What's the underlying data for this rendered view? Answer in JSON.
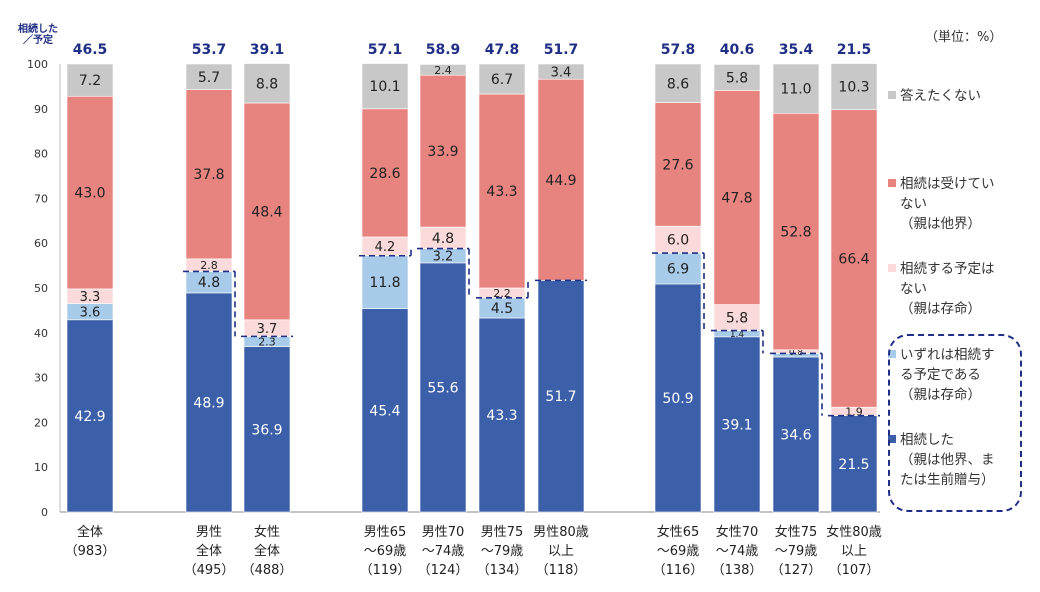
{
  "unit_label": "（単位：%）",
  "y_axis_label": "相続した\n／予定",
  "colors": {
    "inherited": "#3b5fa8",
    "plan_someday": "#a8cbe9",
    "plan_not": "#fadada",
    "not_received": "#e88480",
    "no_answer": "#c8c8c8",
    "total_label": "#1f2f86",
    "dashed": "#1f2f86"
  },
  "legend": [
    {
      "key": "no_answer",
      "lines": [
        "答えたくない"
      ]
    },
    {
      "key": "not_received",
      "lines": [
        "相続は受けてい",
        "ない",
        "（親は他界）"
      ]
    },
    {
      "key": "plan_not",
      "lines": [
        "相続する予定は",
        "ない",
        "（親は存命）"
      ]
    },
    {
      "key": "plan_someday",
      "lines": [
        "いずれは相続す",
        "る予定である",
        "（親は存命）"
      ]
    },
    {
      "key": "inherited",
      "lines": [
        "相続した",
        "（親は他界、ま",
        "たは生前贈与）"
      ]
    }
  ],
  "chart_data": {
    "type": "bar",
    "stacked": true,
    "ylim": [
      0,
      100
    ],
    "yticks": [
      0,
      10,
      20,
      30,
      40,
      50,
      60,
      70,
      80,
      90,
      100
    ],
    "grid": false,
    "legend_position": "right",
    "series_order": [
      "inherited",
      "plan_someday",
      "plan_not",
      "not_received",
      "no_answer"
    ],
    "series": [
      {
        "key": "inherited",
        "name": "相続した（親は他界、または生前贈与）"
      },
      {
        "key": "plan_someday",
        "name": "いずれは相続する予定である（親は存命）"
      },
      {
        "key": "plan_not",
        "name": "相続する予定はない（親は存命）"
      },
      {
        "key": "not_received",
        "name": "相続は受けていない（親は他界）"
      },
      {
        "key": "no_answer",
        "name": "答えたくない"
      }
    ],
    "categories": [
      {
        "label": [
          "全体",
          "（983）"
        ],
        "total": "46.5",
        "values": {
          "inherited": 42.9,
          "plan_someday": 3.6,
          "plan_not": 3.3,
          "not_received": 43.0,
          "no_answer": 7.2
        },
        "labels": {
          "inherited": "42.9",
          "plan_someday": "3.6",
          "plan_not": "3.3",
          "not_received": "43.0",
          "no_answer": "7.2"
        }
      },
      {
        "label": [
          "男性",
          "全体",
          "（495）"
        ],
        "total": "53.7",
        "values": {
          "inherited": 48.9,
          "plan_someday": 4.8,
          "plan_not": 2.8,
          "not_received": 37.8,
          "no_answer": 5.7
        },
        "labels": {
          "inherited": "48.9",
          "plan_someday": "4.8",
          "plan_not": "2.8",
          "not_received": "37.8",
          "no_answer": "5.7"
        }
      },
      {
        "label": [
          "女性",
          "全体",
          "（488）"
        ],
        "total": "39.1",
        "values": {
          "inherited": 36.9,
          "plan_someday": 2.3,
          "plan_not": 3.7,
          "not_received": 48.4,
          "no_answer": 8.8
        },
        "labels": {
          "inherited": "36.9",
          "plan_someday": "2.3",
          "plan_not": "3.7",
          "not_received": "48.4",
          "no_answer": "8.8"
        }
      },
      {
        "label": [
          "男性65",
          "～69歳",
          "（119）"
        ],
        "total": "57.1",
        "values": {
          "inherited": 45.4,
          "plan_someday": 11.8,
          "plan_not": 4.2,
          "not_received": 28.6,
          "no_answer": 10.1
        },
        "labels": {
          "inherited": "45.4",
          "plan_someday": "11.8",
          "plan_not": "4.2",
          "not_received": "28.6",
          "no_answer": "10.1"
        }
      },
      {
        "label": [
          "男性70",
          "～74歳",
          "（124）"
        ],
        "total": "58.9",
        "values": {
          "inherited": 55.6,
          "plan_someday": 3.2,
          "plan_not": 4.8,
          "not_received": 33.9,
          "no_answer": 2.4
        },
        "labels": {
          "inherited": "55.6",
          "plan_someday": "3.2",
          "plan_not": "4.8",
          "not_received": "33.9",
          "no_answer": "2.4"
        }
      },
      {
        "label": [
          "男性75",
          "～79歳",
          "（134）"
        ],
        "total": "47.8",
        "values": {
          "inherited": 43.3,
          "plan_someday": 4.5,
          "plan_not": 2.2,
          "not_received": 43.3,
          "no_answer": 6.7
        },
        "labels": {
          "inherited": "43.3",
          "plan_someday": "4.5",
          "plan_not": "2.2",
          "not_received": "43.3",
          "no_answer": "6.7"
        }
      },
      {
        "label": [
          "男性80歳",
          "以上",
          "（118）"
        ],
        "total": "51.7",
        "values": {
          "inherited": 51.7,
          "plan_someday": 0,
          "plan_not": 0,
          "not_received": 44.9,
          "no_answer": 3.4
        },
        "labels": {
          "inherited": "51.7",
          "plan_someday": "",
          "plan_not": "",
          "not_received": "44.9",
          "no_answer": "3.4"
        }
      },
      {
        "label": [
          "女性65",
          "～69歳",
          "（116）"
        ],
        "total": "57.8",
        "values": {
          "inherited": 50.9,
          "plan_someday": 6.9,
          "plan_not": 6.0,
          "not_received": 27.6,
          "no_answer": 8.6
        },
        "labels": {
          "inherited": "50.9",
          "plan_someday": "6.9",
          "plan_not": "6.0",
          "not_received": "27.6",
          "no_answer": "8.6"
        }
      },
      {
        "label": [
          "女性70",
          "～74歳",
          "（138）"
        ],
        "total": "40.6",
        "values": {
          "inherited": 39.1,
          "plan_someday": 1.4,
          "plan_not": 5.8,
          "not_received": 47.8,
          "no_answer": 5.8
        },
        "labels": {
          "inherited": "39.1",
          "plan_someday": "1.4",
          "plan_not": "5.8",
          "not_received": "47.8",
          "no_answer": "5.8"
        }
      },
      {
        "label": [
          "女性75",
          "～79歳",
          "（127）"
        ],
        "total": "35.4",
        "values": {
          "inherited": 34.6,
          "plan_someday": 0.8,
          "plan_not": 0.8,
          "not_received": 52.8,
          "no_answer": 11.0
        },
        "labels": {
          "inherited": "34.6",
          "plan_someday": "",
          "plan_not": "0.8",
          "not_received": "52.8",
          "no_answer": "11.0"
        }
      },
      {
        "label": [
          "女性80歳",
          "以上",
          "（107）"
        ],
        "total": "21.5",
        "values": {
          "inherited": 21.5,
          "plan_someday": 0,
          "plan_not": 1.9,
          "not_received": 66.4,
          "no_answer": 10.3
        },
        "labels": {
          "inherited": "21.5",
          "plan_someday": "",
          "plan_not": "1.9",
          "not_received": "66.4",
          "no_answer": "10.3"
        }
      }
    ]
  }
}
